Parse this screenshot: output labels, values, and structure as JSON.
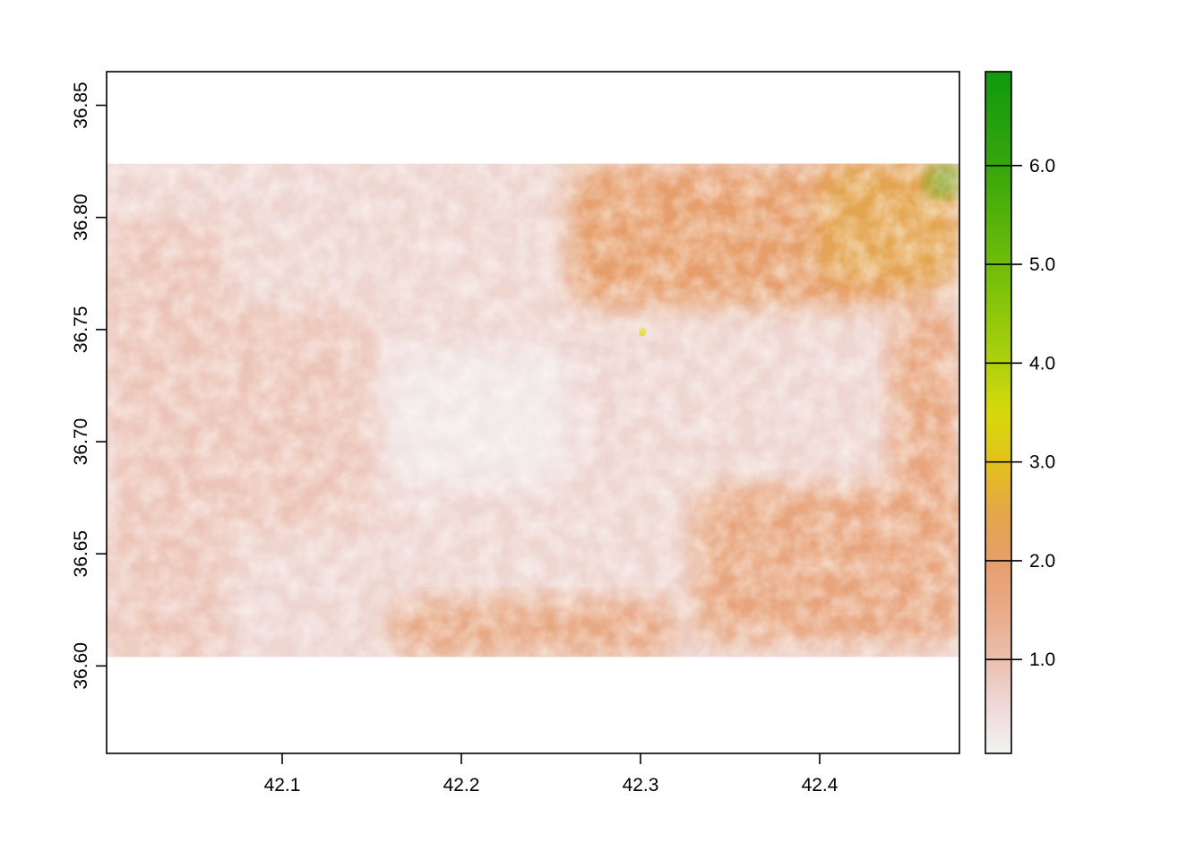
{
  "chart_data": {
    "type": "heatmap",
    "title": "",
    "xlabel": "",
    "ylabel": "",
    "xlim": [
      42.002,
      42.478
    ],
    "ylim": [
      36.561,
      36.865
    ],
    "raster_extent": {
      "x": [
        42.002,
        42.478
      ],
      "y": [
        36.604,
        36.824
      ]
    },
    "x_ticks": [
      {
        "value": 42.1,
        "label": "42.1"
      },
      {
        "value": 42.2,
        "label": "42.2"
      },
      {
        "value": 42.3,
        "label": "42.3"
      },
      {
        "value": 42.4,
        "label": "42.4"
      }
    ],
    "y_ticks": [
      {
        "value": 36.6,
        "label": "36.60"
      },
      {
        "value": 36.65,
        "label": "36.65"
      },
      {
        "value": 36.7,
        "label": "36.70"
      },
      {
        "value": 36.75,
        "label": "36.75"
      },
      {
        "value": 36.8,
        "label": "36.80"
      },
      {
        "value": 36.85,
        "label": "36.85"
      }
    ],
    "legend": {
      "placement": "right",
      "range": [
        0.05,
        6.95
      ],
      "ticks": [
        {
          "value": 1.0,
          "label": "1.0"
        },
        {
          "value": 2.0,
          "label": "2.0"
        },
        {
          "value": 3.0,
          "label": "3.0"
        },
        {
          "value": 4.0,
          "label": "4.0"
        },
        {
          "value": 5.0,
          "label": "5.0"
        },
        {
          "value": 6.0,
          "label": "6.0"
        }
      ],
      "colors": [
        {
          "value": 0.05,
          "color": "#f2f2f2"
        },
        {
          "value": 0.5,
          "color": "#efdad9"
        },
        {
          "value": 1.0,
          "color": "#ebbfae"
        },
        {
          "value": 1.5,
          "color": "#e9aa89"
        },
        {
          "value": 2.0,
          "color": "#e69e6b"
        },
        {
          "value": 2.5,
          "color": "#e3a748"
        },
        {
          "value": 3.0,
          "color": "#e3c21a"
        },
        {
          "value": 3.5,
          "color": "#d7d90c"
        },
        {
          "value": 4.0,
          "color": "#aed10b"
        },
        {
          "value": 5.0,
          "color": "#6fbd0a"
        },
        {
          "value": 6.0,
          "color": "#36a60b"
        },
        {
          "value": 6.95,
          "color": "#0f9a0f"
        }
      ]
    },
    "grid": false,
    "regions": [
      {
        "x": [
          42.002,
          42.478
        ],
        "y": [
          36.604,
          36.824
        ],
        "level": 0.6
      },
      {
        "x": [
          42.002,
          42.07
        ],
        "y": [
          36.6,
          36.8
        ],
        "level": 0.9
      },
      {
        "x": [
          42.06,
          42.15
        ],
        "y": [
          36.66,
          36.76
        ],
        "level": 0.9
      },
      {
        "x": [
          42.26,
          42.47
        ],
        "y": [
          36.76,
          36.824
        ],
        "level": 2.0
      },
      {
        "x": [
          42.4,
          42.478
        ],
        "y": [
          36.77,
          36.824
        ],
        "level": 2.4
      },
      {
        "x": [
          42.46,
          42.478
        ],
        "y": [
          36.81,
          36.822
        ],
        "level": 5.6
      },
      {
        "x": [
          42.33,
          42.478
        ],
        "y": [
          36.61,
          36.68
        ],
        "level": 1.7
      },
      {
        "x": [
          42.44,
          42.478
        ],
        "y": [
          36.64,
          36.76
        ],
        "level": 1.7
      },
      {
        "x": [
          42.16,
          42.32
        ],
        "y": [
          36.604,
          36.63
        ],
        "level": 1.6
      },
      {
        "x": [
          42.16,
          42.26
        ],
        "y": [
          36.68,
          36.74
        ],
        "level": 0.25
      },
      {
        "x": [
          42.299,
          42.303
        ],
        "y": [
          36.747,
          36.751
        ],
        "level": 3.2
      }
    ]
  }
}
